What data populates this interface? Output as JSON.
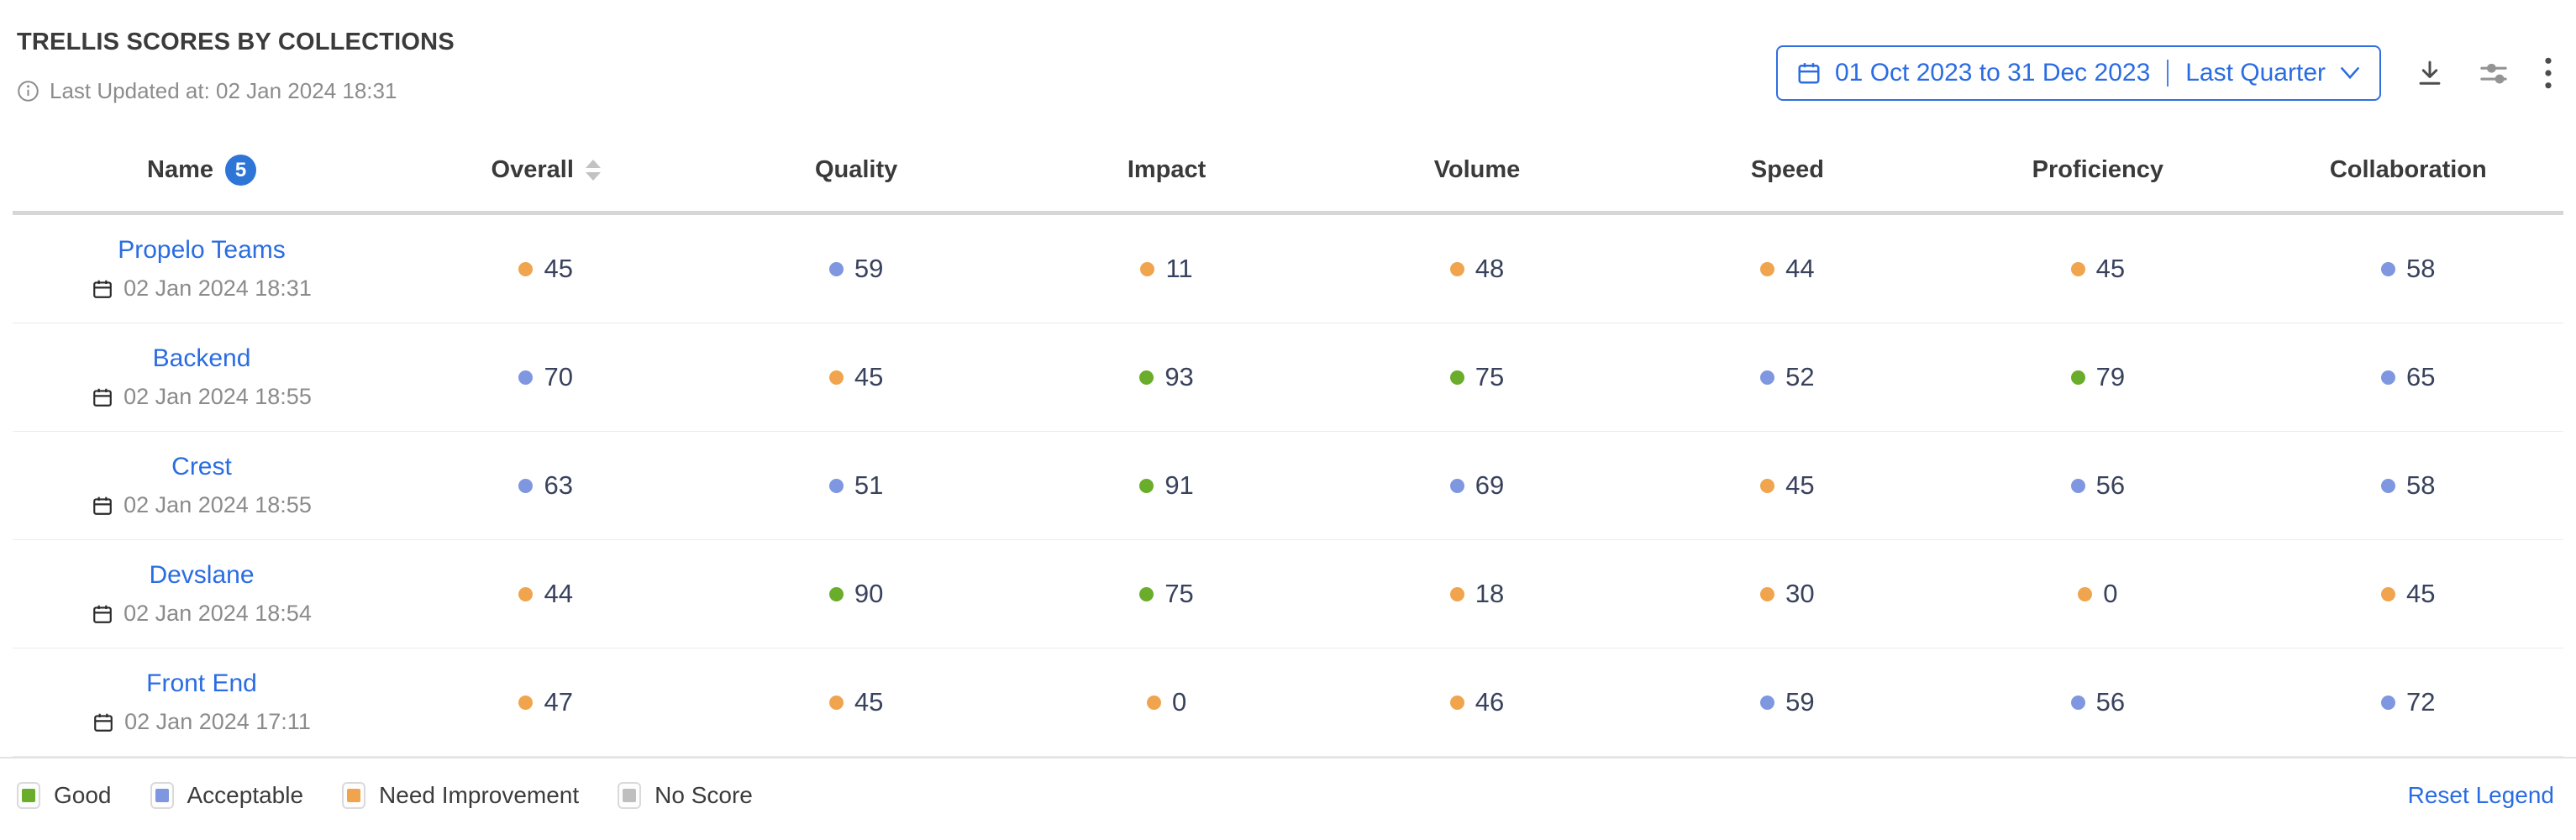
{
  "header": {
    "title": "TRELLIS SCORES BY COLLECTIONS",
    "last_updated": "Last Updated at: 02 Jan 2024 18:31"
  },
  "toolbar": {
    "date_range": "01 Oct 2023 to 31 Dec 2023",
    "date_preset": "Last Quarter",
    "icons": [
      "calendar-icon",
      "chevron-down-icon",
      "download-icon",
      "sliders-icon",
      "kebab-menu-icon"
    ]
  },
  "table": {
    "columns": [
      {
        "label": "Name",
        "badge": "5"
      },
      {
        "label": "Overall",
        "sortable": true
      },
      {
        "label": "Quality"
      },
      {
        "label": "Impact"
      },
      {
        "label": "Volume"
      },
      {
        "label": "Speed"
      },
      {
        "label": "Proficiency"
      },
      {
        "label": "Collaboration"
      }
    ],
    "rows": [
      {
        "name": "Propelo Teams",
        "date": "02 Jan 2024 18:31",
        "scores": [
          {
            "value": 45,
            "status": "need-improvement"
          },
          {
            "value": 59,
            "status": "acceptable"
          },
          {
            "value": 11,
            "status": "need-improvement"
          },
          {
            "value": 48,
            "status": "need-improvement"
          },
          {
            "value": 44,
            "status": "need-improvement"
          },
          {
            "value": 45,
            "status": "need-improvement"
          },
          {
            "value": 58,
            "status": "acceptable"
          }
        ]
      },
      {
        "name": "Backend",
        "date": "02 Jan 2024 18:55",
        "scores": [
          {
            "value": 70,
            "status": "acceptable"
          },
          {
            "value": 45,
            "status": "need-improvement"
          },
          {
            "value": 93,
            "status": "good"
          },
          {
            "value": 75,
            "status": "good"
          },
          {
            "value": 52,
            "status": "acceptable"
          },
          {
            "value": 79,
            "status": "good"
          },
          {
            "value": 65,
            "status": "acceptable"
          }
        ]
      },
      {
        "name": "Crest",
        "date": "02 Jan 2024 18:55",
        "scores": [
          {
            "value": 63,
            "status": "acceptable"
          },
          {
            "value": 51,
            "status": "acceptable"
          },
          {
            "value": 91,
            "status": "good"
          },
          {
            "value": 69,
            "status": "acceptable"
          },
          {
            "value": 45,
            "status": "need-improvement"
          },
          {
            "value": 56,
            "status": "acceptable"
          },
          {
            "value": 58,
            "status": "acceptable"
          }
        ]
      },
      {
        "name": "Devslane",
        "date": "02 Jan 2024 18:54",
        "scores": [
          {
            "value": 44,
            "status": "need-improvement"
          },
          {
            "value": 90,
            "status": "good"
          },
          {
            "value": 75,
            "status": "good"
          },
          {
            "value": 18,
            "status": "need-improvement"
          },
          {
            "value": 30,
            "status": "need-improvement"
          },
          {
            "value": 0,
            "status": "need-improvement"
          },
          {
            "value": 45,
            "status": "need-improvement"
          }
        ]
      },
      {
        "name": "Front End",
        "date": "02 Jan 2024 17:11",
        "scores": [
          {
            "value": 47,
            "status": "need-improvement"
          },
          {
            "value": 45,
            "status": "need-improvement"
          },
          {
            "value": 0,
            "status": "need-improvement"
          },
          {
            "value": 46,
            "status": "need-improvement"
          },
          {
            "value": 59,
            "status": "acceptable"
          },
          {
            "value": 56,
            "status": "acceptable"
          },
          {
            "value": 72,
            "status": "acceptable"
          }
        ]
      }
    ]
  },
  "legend": {
    "items": [
      {
        "label": "Good",
        "status": "good"
      },
      {
        "label": "Acceptable",
        "status": "acceptable"
      },
      {
        "label": "Need Improvement",
        "status": "need-improvement"
      },
      {
        "label": "No Score",
        "status": "no-score"
      }
    ],
    "reset_label": "Reset Legend"
  },
  "colors": {
    "good": "#69ad2b",
    "acceptable": "#7e97e0",
    "need-improvement": "#f0a44e",
    "no-score": "#bfbfbf",
    "accent": "#2a6ce2",
    "value_text": "#39425d"
  }
}
